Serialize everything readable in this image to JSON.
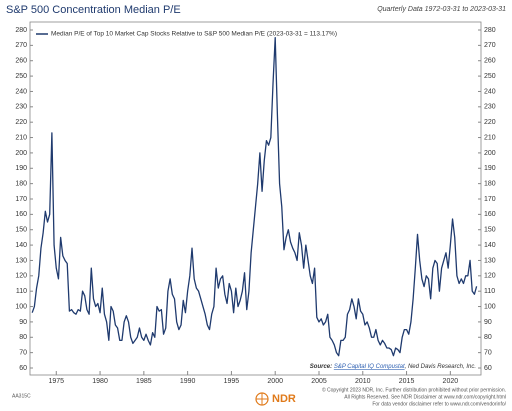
{
  "chart_data": {
    "type": "line",
    "title": "S&P 500 Concentration Median P/E",
    "subtitle": "Quarterly Data 1972-03-31 to 2023-03-31",
    "source_label": "Source:",
    "source_link": "S&P Capital IQ Compustat",
    "source_rest": ", Ned Davis Research, Inc.",
    "x": [
      1972.25,
      1972.5,
      1972.75,
      1973,
      1973.25,
      1973.5,
      1973.75,
      1974,
      1974.25,
      1974.5,
      1974.75,
      1975,
      1975.25,
      1975.5,
      1975.75,
      1976,
      1976.25,
      1976.5,
      1976.75,
      1977,
      1977.25,
      1977.5,
      1977.75,
      1978,
      1978.25,
      1978.5,
      1978.75,
      1979,
      1979.25,
      1979.5,
      1979.75,
      1980,
      1980.25,
      1980.5,
      1980.75,
      1981,
      1981.25,
      1981.5,
      1981.75,
      1982,
      1982.25,
      1982.5,
      1982.75,
      1983,
      1983.25,
      1983.5,
      1983.75,
      1984,
      1984.25,
      1984.5,
      1984.75,
      1985,
      1985.25,
      1985.5,
      1985.75,
      1986,
      1986.25,
      1986.5,
      1986.75,
      1987,
      1987.25,
      1987.5,
      1987.75,
      1988,
      1988.25,
      1988.5,
      1988.75,
      1989,
      1989.25,
      1989.5,
      1989.75,
      1990,
      1990.25,
      1990.5,
      1990.75,
      1991,
      1991.25,
      1991.5,
      1991.75,
      1992,
      1992.25,
      1992.5,
      1992.75,
      1993,
      1993.25,
      1993.5,
      1993.75,
      1994,
      1994.25,
      1994.5,
      1994.75,
      1995,
      1995.25,
      1995.5,
      1995.75,
      1996,
      1996.25,
      1996.5,
      1996.75,
      1997,
      1997.25,
      1997.5,
      1997.75,
      1998,
      1998.25,
      1998.5,
      1998.75,
      1999,
      1999.25,
      1999.5,
      1999.75,
      2000,
      2000.25,
      2000.5,
      2000.75,
      2001,
      2001.25,
      2001.5,
      2001.75,
      2002,
      2002.25,
      2002.5,
      2002.75,
      2003,
      2003.25,
      2003.5,
      2003.75,
      2004,
      2004.25,
      2004.5,
      2004.75,
      2005,
      2005.25,
      2005.5,
      2005.75,
      2006,
      2006.25,
      2006.5,
      2006.75,
      2007,
      2007.25,
      2007.5,
      2007.75,
      2008,
      2008.25,
      2008.5,
      2008.75,
      2009,
      2009.25,
      2009.5,
      2009.75,
      2010,
      2010.25,
      2010.5,
      2010.75,
      2011,
      2011.25,
      2011.5,
      2011.75,
      2012,
      2012.25,
      2012.5,
      2012.75,
      2013,
      2013.25,
      2013.5,
      2013.75,
      2014,
      2014.25,
      2014.5,
      2014.75,
      2015,
      2015.25,
      2015.5,
      2015.75,
      2016,
      2016.25,
      2016.5,
      2016.75,
      2017,
      2017.25,
      2017.5,
      2017.75,
      2018,
      2018.25,
      2018.5,
      2018.75,
      2019,
      2019.25,
      2019.5,
      2019.75,
      2020,
      2020.25,
      2020.5,
      2020.75,
      2021,
      2021.25,
      2021.5,
      2021.75,
      2022,
      2022.25,
      2022.5,
      2022.75,
      2023
    ],
    "series": [
      {
        "name": "Median P/E of Top 10 Market Cap Stocks Relative to S&P 500 Median P/E (2023-03-31 = 113.17%)",
        "color": "#1f3a6e",
        "values": [
          96,
          100,
          112,
          120,
          138,
          148,
          162,
          155,
          160,
          213,
          140,
          125,
          118,
          145,
          133,
          130,
          128,
          97,
          98,
          96,
          95,
          98,
          97,
          110,
          107,
          98,
          95,
          125,
          105,
          100,
          102,
          96,
          112,
          95,
          90,
          78,
          100,
          97,
          88,
          86,
          78,
          78,
          90,
          94,
          90,
          80,
          76,
          78,
          80,
          86,
          80,
          78,
          82,
          78,
          75,
          83,
          80,
          100,
          97,
          98,
          82,
          86,
          110,
          118,
          108,
          105,
          90,
          85,
          88,
          104,
          96,
          110,
          120,
          138,
          118,
          112,
          110,
          105,
          100,
          95,
          88,
          85,
          95,
          100,
          125,
          112,
          118,
          120,
          108,
          102,
          115,
          110,
          96,
          112,
          100,
          104,
          110,
          122,
          98,
          110,
          135,
          150,
          165,
          180,
          200,
          175,
          195,
          208,
          205,
          210,
          245,
          275,
          225,
          180,
          165,
          137,
          145,
          150,
          142,
          138,
          135,
          130,
          148,
          140,
          125,
          140,
          130,
          120,
          115,
          125,
          93,
          90,
          92,
          88,
          90,
          95,
          80,
          78,
          75,
          70,
          68,
          78,
          78,
          80,
          95,
          98,
          105,
          100,
          92,
          105,
          97,
          95,
          88,
          90,
          86,
          80,
          80,
          85,
          78,
          75,
          78,
          76,
          73,
          73,
          72,
          68,
          73,
          72,
          70,
          80,
          85,
          85,
          82,
          90,
          105,
          125,
          147,
          130,
          118,
          113,
          120,
          118,
          105,
          125,
          130,
          128,
          110,
          125,
          130,
          135,
          125,
          140,
          157,
          145,
          120,
          115,
          118,
          115,
          120,
          120,
          130,
          110,
          108,
          113.17
        ]
      }
    ],
    "xlim": [
      1972,
      2023.5
    ],
    "xticks": [
      1975,
      1980,
      1985,
      1990,
      1995,
      2000,
      2005,
      2010,
      2015,
      2020
    ],
    "ylim": [
      60,
      280
    ],
    "yticks": [
      60,
      70,
      80,
      90,
      100,
      110,
      120,
      130,
      140,
      150,
      160,
      170,
      180,
      190,
      200,
      210,
      220,
      230,
      240,
      250,
      260,
      270,
      280
    ],
    "grid": false
  },
  "footer": {
    "code": "AA315C",
    "logo": "NDR",
    "lines": [
      "© Copyright 2023 NDR, Inc. Further distribution prohibited without prior permission.",
      "All Rights Reserved. See NDR Disclaimer at www.ndr.com/copyright.html",
      "For data vendor disclaimer refer to www.ndr.com/vendorinfo/"
    ]
  }
}
